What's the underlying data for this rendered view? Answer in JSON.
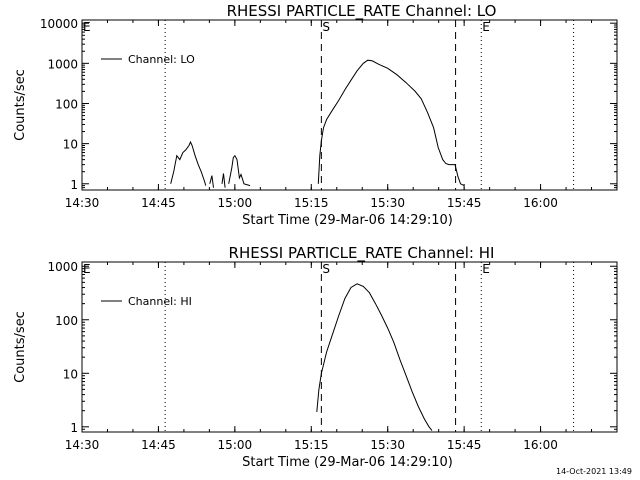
{
  "footer": {
    "timestamp": "14-Oct-2021 13:49"
  },
  "chart_data": [
    {
      "type": "line",
      "title": "RHESSI PARTICLE_RATE Channel: LO",
      "xlabel": "Start Time (29-Mar-06 14:29:10)",
      "ylabel": "Counts/sec",
      "yscale": "log",
      "xlim": [
        14.5,
        16.25
      ],
      "ylim": [
        0.7,
        12000
      ],
      "xticks": [
        {
          "value": 14.5,
          "label": "14:30"
        },
        {
          "value": 14.75,
          "label": "14:45"
        },
        {
          "value": 15.0,
          "label": "15:00"
        },
        {
          "value": 15.25,
          "label": "15:15"
        },
        {
          "value": 15.5,
          "label": "15:30"
        },
        {
          "value": 15.75,
          "label": "15:45"
        },
        {
          "value": 16.0,
          "label": "16:00"
        }
      ],
      "yticks": [
        {
          "value": 1,
          "label": "1"
        },
        {
          "value": 10,
          "label": "10"
        },
        {
          "value": 100,
          "label": "100"
        },
        {
          "value": 1000,
          "label": "1000"
        },
        {
          "value": 10000,
          "label": "10000"
        }
      ],
      "legend": {
        "label": "Channel: LO",
        "location": "top-left"
      },
      "markers": [
        {
          "name": "E",
          "x": 14.5,
          "style": "dotted"
        },
        {
          "name": "",
          "x": 14.772,
          "style": "dotted"
        },
        {
          "name": "S",
          "x": 15.283,
          "style": "dashed"
        },
        {
          "name": "",
          "x": 15.722,
          "style": "dashed"
        },
        {
          "name": "E",
          "x": 15.806,
          "style": "dotted"
        },
        {
          "name": "",
          "x": 16.108,
          "style": "dotted"
        }
      ],
      "series": [
        {
          "name": "Channel: LO",
          "segments": [
            [
              [
                14.79,
                1
              ],
              [
                14.8,
                2
              ],
              [
                14.81,
                5
              ],
              [
                14.82,
                4
              ],
              [
                14.83,
                6
              ],
              [
                14.84,
                7
              ],
              [
                14.85,
                9
              ],
              [
                14.855,
                11
              ],
              [
                14.86,
                9
              ],
              [
                14.87,
                5
              ],
              [
                14.88,
                3
              ],
              [
                14.89,
                2
              ],
              [
                14.9,
                1.2
              ],
              [
                14.905,
                0.9
              ]
            ],
            [
              [
                14.918,
                1
              ],
              [
                14.925,
                1.6
              ],
              [
                14.93,
                0.8
              ]
            ],
            [
              [
                14.958,
                1
              ],
              [
                14.963,
                1.8
              ],
              [
                14.968,
                0.8
              ]
            ],
            [
              [
                14.98,
                1
              ],
              [
                14.99,
                2.5
              ],
              [
                14.995,
                4.5
              ],
              [
                15.0,
                5
              ],
              [
                15.007,
                4
              ],
              [
                15.015,
                1.4
              ],
              [
                15.02,
                1.7
              ],
              [
                15.03,
                1
              ],
              [
                15.05,
                0.9
              ]
            ],
            [
              [
                15.273,
                1
              ],
              [
                15.278,
                5
              ],
              [
                15.283,
                12
              ],
              [
                15.29,
                25
              ],
              [
                15.3,
                40
              ],
              [
                15.32,
                70
              ],
              [
                15.34,
                120
              ],
              [
                15.36,
                220
              ],
              [
                15.38,
                380
              ],
              [
                15.4,
                650
              ],
              [
                15.42,
                1000
              ],
              [
                15.435,
                1200
              ],
              [
                15.45,
                1150
              ],
              [
                15.47,
                950
              ],
              [
                15.5,
                750
              ],
              [
                15.53,
                520
              ],
              [
                15.56,
                330
              ],
              [
                15.59,
                200
              ],
              [
                15.61,
                130
              ],
              [
                15.63,
                60
              ],
              [
                15.65,
                25
              ],
              [
                15.665,
                8
              ],
              [
                15.68,
                4
              ],
              [
                15.69,
                3.2
              ],
              [
                15.7,
                3
              ],
              [
                15.72,
                3
              ],
              [
                15.73,
                1.5
              ],
              [
                15.738,
                1
              ],
              [
                15.75,
                0.9
              ]
            ]
          ]
        }
      ]
    },
    {
      "type": "line",
      "title": "RHESSI PARTICLE_RATE Channel: HI",
      "xlabel": "Start Time (29-Mar-06 14:29:10)",
      "ylabel": "Counts/sec",
      "yscale": "log",
      "xlim": [
        14.5,
        16.25
      ],
      "ylim": [
        0.8,
        1200
      ],
      "xticks": [
        {
          "value": 14.5,
          "label": "14:30"
        },
        {
          "value": 14.75,
          "label": "14:45"
        },
        {
          "value": 15.0,
          "label": "15:00"
        },
        {
          "value": 15.25,
          "label": "15:15"
        },
        {
          "value": 15.5,
          "label": "15:30"
        },
        {
          "value": 15.75,
          "label": "15:45"
        },
        {
          "value": 16.0,
          "label": "16:00"
        }
      ],
      "yticks": [
        {
          "value": 1,
          "label": "1"
        },
        {
          "value": 10,
          "label": "10"
        },
        {
          "value": 100,
          "label": "100"
        },
        {
          "value": 1000,
          "label": "1000"
        }
      ],
      "legend": {
        "label": "Channel: HI",
        "location": "top-left"
      },
      "markers": [
        {
          "name": "E",
          "x": 14.5,
          "style": "dotted"
        },
        {
          "name": "",
          "x": 14.772,
          "style": "dotted"
        },
        {
          "name": "S",
          "x": 15.283,
          "style": "dashed"
        },
        {
          "name": "",
          "x": 15.722,
          "style": "dashed"
        },
        {
          "name": "E",
          "x": 15.806,
          "style": "dotted"
        },
        {
          "name": "",
          "x": 16.108,
          "style": "dotted"
        }
      ],
      "series": [
        {
          "name": "Channel: HI",
          "segments": [
            [
              [
                15.268,
                1.9
              ],
              [
                15.275,
                5
              ],
              [
                15.283,
                10
              ],
              [
                15.3,
                25
              ],
              [
                15.32,
                55
              ],
              [
                15.34,
                120
              ],
              [
                15.36,
                250
              ],
              [
                15.38,
                400
              ],
              [
                15.4,
                470
              ],
              [
                15.42,
                420
              ],
              [
                15.44,
                320
              ],
              [
                15.46,
                200
              ],
              [
                15.48,
                120
              ],
              [
                15.5,
                70
              ],
              [
                15.52,
                38
              ],
              [
                15.54,
                18
              ],
              [
                15.56,
                9
              ],
              [
                15.58,
                4.5
              ],
              [
                15.6,
                2.4
              ],
              [
                15.62,
                1.4
              ],
              [
                15.635,
                1
              ],
              [
                15.645,
                0.85
              ]
            ]
          ]
        }
      ]
    }
  ]
}
